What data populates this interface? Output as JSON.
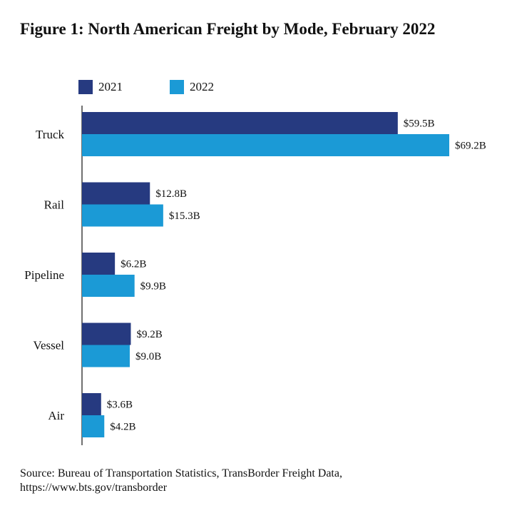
{
  "title": "Figure 1: North American Freight by Mode, February 2022",
  "source": {
    "line1": "Source: Bureau of Transportation Statistics, TransBorder Freight Data,",
    "line2": "https://www.bts.gov/transborder"
  },
  "colors": {
    "series_2021": "#263a80",
    "series_2022": "#1b9ad6",
    "axis": "#222222"
  },
  "chart_data": {
    "type": "bar",
    "orientation": "horizontal",
    "title": "Figure 1: North American Freight by Mode, February 2022",
    "xlabel": "",
    "ylabel": "",
    "categories": [
      "Truck",
      "Rail",
      "Pipeline",
      "Vessel",
      "Air"
    ],
    "series": [
      {
        "name": "2021",
        "values": [
          59.5,
          12.8,
          6.2,
          9.2,
          3.6
        ],
        "labels": [
          "$59.5B",
          "$12.8B",
          "$6.2B",
          "$9.2B",
          "$3.6B"
        ],
        "color": "#263a80"
      },
      {
        "name": "2022",
        "values": [
          69.2,
          15.3,
          9.9,
          9.0,
          4.2
        ],
        "labels": [
          "$69.2B",
          "$15.3B",
          "$9.9B",
          "$9.0B",
          "$4.2B"
        ],
        "color": "#1b9ad6"
      }
    ],
    "xlim": [
      0,
      69.2
    ],
    "grid": false,
    "legend": "top-left"
  }
}
